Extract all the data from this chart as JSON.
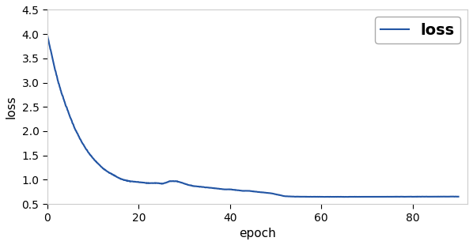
{
  "line_color": "#2255a4",
  "line_width": 1.5,
  "xlabel": "epoch",
  "ylabel": "loss",
  "legend_label": "loss",
  "xlim": [
    0,
    92
  ],
  "ylim": [
    0.5,
    4.5
  ],
  "xticks": [
    0,
    20,
    40,
    60,
    80
  ],
  "yticks": [
    0.5,
    1.0,
    1.5,
    2.0,
    2.5,
    3.0,
    3.5,
    4.0,
    4.5
  ],
  "figsize": [
    5.98,
    3.1
  ],
  "dpi": 100,
  "background_color": "#ffffff",
  "curve_points": [
    [
      0,
      3.97
    ],
    [
      1,
      3.55
    ],
    [
      2,
      3.15
    ],
    [
      3,
      2.82
    ],
    [
      4,
      2.54
    ],
    [
      5,
      2.29
    ],
    [
      6,
      2.06
    ],
    [
      7,
      1.87
    ],
    [
      8,
      1.7
    ],
    [
      9,
      1.56
    ],
    [
      10,
      1.44
    ],
    [
      11,
      1.34
    ],
    [
      12,
      1.25
    ],
    [
      13,
      1.18
    ],
    [
      14,
      1.12
    ],
    [
      15,
      1.07
    ],
    [
      16,
      1.02
    ],
    [
      17,
      0.99
    ],
    [
      18,
      0.97
    ],
    [
      19,
      0.96
    ],
    [
      20,
      0.95
    ],
    [
      21,
      0.94
    ],
    [
      22,
      0.93
    ],
    [
      23,
      0.93
    ],
    [
      24,
      0.93
    ],
    [
      25,
      0.92
    ],
    [
      26,
      0.94
    ],
    [
      27,
      0.97
    ],
    [
      28,
      0.97
    ],
    [
      29,
      0.95
    ],
    [
      30,
      0.92
    ],
    [
      31,
      0.89
    ],
    [
      32,
      0.87
    ],
    [
      33,
      0.86
    ],
    [
      34,
      0.85
    ],
    [
      35,
      0.84
    ],
    [
      36,
      0.83
    ],
    [
      37,
      0.82
    ],
    [
      38,
      0.81
    ],
    [
      39,
      0.8
    ],
    [
      40,
      0.8
    ],
    [
      41,
      0.79
    ],
    [
      42,
      0.78
    ],
    [
      43,
      0.77
    ],
    [
      44,
      0.77
    ],
    [
      45,
      0.76
    ],
    [
      46,
      0.75
    ],
    [
      47,
      0.74
    ],
    [
      48,
      0.73
    ],
    [
      49,
      0.72
    ],
    [
      50,
      0.7
    ],
    [
      51,
      0.68
    ],
    [
      52,
      0.66
    ],
    [
      53,
      0.655
    ],
    [
      54,
      0.652
    ],
    [
      55,
      0.65
    ],
    [
      60,
      0.648
    ],
    [
      65,
      0.647
    ],
    [
      70,
      0.648
    ],
    [
      75,
      0.649
    ],
    [
      80,
      0.65
    ],
    [
      85,
      0.651
    ],
    [
      90,
      0.652
    ]
  ]
}
